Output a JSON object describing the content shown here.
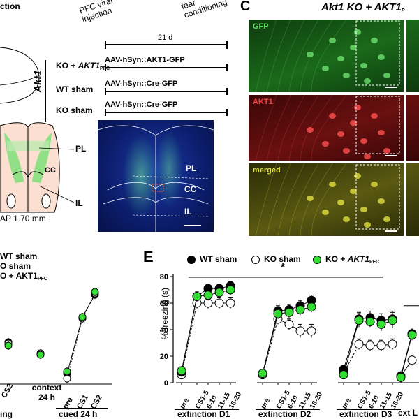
{
  "panel_a": {
    "title_fragment": "ction"
  },
  "timeline": {
    "header_left": "PFC viral injection",
    "header_right": "fear conditioning",
    "duration": "21 d",
    "gene": "Akt1",
    "rows": [
      {
        "label_main": "KO + ",
        "label_gene": "AKT1",
        "label_sub": "PFC",
        "virus": "AAV-hSyn::AKT1-GFP"
      },
      {
        "label_main": "WT sham",
        "label_gene": "",
        "label_sub": "",
        "virus": "AAV-hSyn::Cre-GFP"
      },
      {
        "label_main": "KO sham",
        "label_gene": "",
        "label_sub": "",
        "virus": "AAV-hSyn::Cre-GFP"
      }
    ]
  },
  "anatomy": {
    "labels": [
      "PL",
      "CC",
      "IL"
    ],
    "coordinate": "AP 1.70 mm"
  },
  "panel_c": {
    "letter": "C",
    "title_main": "Akt1 KO + AKT1",
    "title_sub": "P",
    "channels": [
      {
        "label": "GFP",
        "color": "#5fe05f"
      },
      {
        "label": "AKT1",
        "color": "#ff4040"
      },
      {
        "label": "merged",
        "color": "#e0e040"
      }
    ]
  },
  "panel_d": {
    "legend": [
      {
        "main": "WT sham",
        "sub": ""
      },
      {
        "main": "O sham",
        "sub": ""
      },
      {
        "main": "O + AKT1",
        "sub": "PFC"
      }
    ],
    "x_groups": [
      {
        "ticks": [
          "CS2"
        ],
        "label": "ing"
      },
      {
        "ticks": [],
        "label": "context 24 h"
      },
      {
        "ticks": [
          "pre",
          "CS1",
          "CS2"
        ],
        "label": "cued 24 h"
      }
    ]
  },
  "panel_e": {
    "letter": "E",
    "legend": [
      {
        "name": "WT sham",
        "color": "#000000",
        "stroke": "#000000"
      },
      {
        "name": "KO sham",
        "color": "#ffffff",
        "stroke": "#000000"
      },
      {
        "name": "KO + AKT1",
        "sub": "PFC",
        "color": "#33dd33",
        "stroke": "#000000"
      }
    ],
    "significance": "*",
    "ext_fragment": "ext L"
  },
  "chart_data": {
    "type": "line",
    "ylabel": "% freezing (s)",
    "ylim": [
      0,
      80
    ],
    "yticks": [
      0,
      20,
      40,
      60,
      80
    ],
    "groups": [
      {
        "label": "extinction D1",
        "categories": [
          "pre",
          "CS1-5",
          "6-10",
          "11-15",
          "16-20"
        ]
      },
      {
        "label": "extinction D2",
        "categories": [
          "pre",
          "CS1-5",
          "6-10",
          "11-15",
          "16-20"
        ]
      },
      {
        "label": "extinction D3",
        "categories": [
          "pre",
          "CS1-5",
          "6-10",
          "11-15",
          "16-20"
        ]
      }
    ],
    "series": [
      {
        "name": "WT sham",
        "fill": "#000000",
        "values": [
          [
            8,
            65,
            71,
            71,
            73
          ],
          [
            7,
            54,
            55,
            58,
            62
          ],
          [
            10,
            48,
            49,
            47,
            48
          ]
        ],
        "errors": [
          [
            2,
            4,
            3,
            3,
            3
          ],
          [
            2,
            4,
            4,
            4,
            4
          ],
          [
            2,
            5,
            5,
            5,
            6
          ]
        ]
      },
      {
        "name": "KO sham",
        "fill": "#ffffff",
        "values": [
          [
            6,
            60,
            60,
            60,
            60
          ],
          [
            6,
            48,
            44,
            39,
            39
          ],
          [
            7,
            29,
            28,
            28,
            29
          ]
        ],
        "errors": [
          [
            2,
            4,
            4,
            4,
            4
          ],
          [
            2,
            4,
            4,
            5,
            5
          ],
          [
            2,
            4,
            4,
            4,
            4
          ]
        ]
      },
      {
        "name": "KO + AKT1PFC",
        "fill": "#33dd33",
        "values": [
          [
            9,
            65,
            66,
            68,
            70
          ],
          [
            7,
            52,
            53,
            55,
            57
          ],
          [
            6,
            47,
            46,
            44,
            47
          ]
        ],
        "errors": [
          [
            2,
            4,
            4,
            4,
            4
          ],
          [
            2,
            4,
            4,
            4,
            4
          ],
          [
            2,
            5,
            4,
            5,
            6
          ]
        ]
      }
    ]
  }
}
